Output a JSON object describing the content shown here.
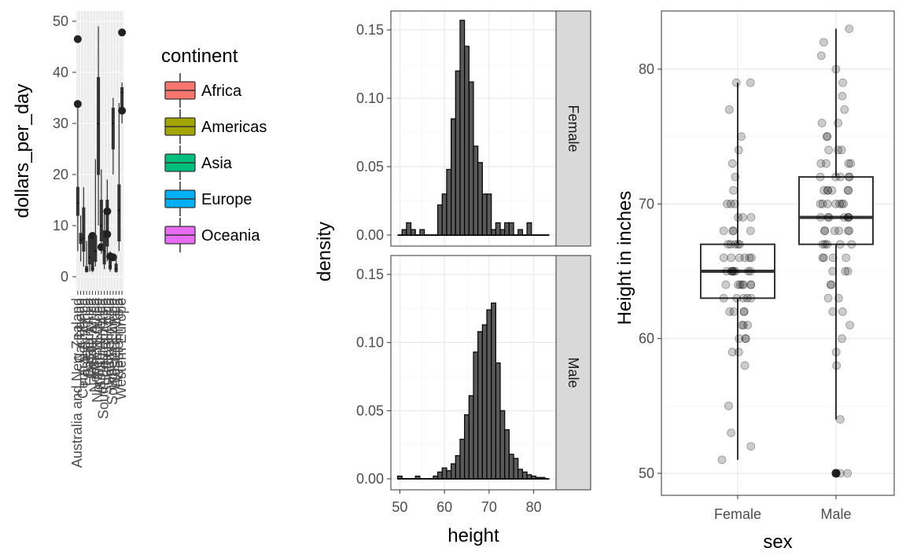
{
  "chart_data": [
    {
      "type": "boxplot",
      "ylabel": "dollars_per_day",
      "ylim": [
        0,
        50
      ],
      "yticks": [
        0,
        10,
        20,
        30,
        40,
        50
      ],
      "grid": true,
      "categories": [
        "Australia and New Zealand",
        "Caribbean",
        "Central America",
        "Eastern Africa",
        "Eastern Asia",
        "Middle Africa",
        "Northern Africa",
        "Northern Europe",
        "South America",
        "South-Eastern Asia",
        "Southern Africa",
        "Southern Asia",
        "Southern Europe",
        "Western Africa",
        "Western Asia",
        "Western Europe"
      ],
      "visible_category_labels": [
        "Australia and New Zealand",
        "Western Europe"
      ],
      "legend": {
        "title": "continent",
        "position": "right",
        "entries": [
          {
            "label": "Africa",
            "color": "#F8766D"
          },
          {
            "label": "Americas",
            "color": "#A3A500"
          },
          {
            "label": "Asia",
            "color": "#00BF7D"
          },
          {
            "label": "Europe",
            "color": "#00B0F6"
          },
          {
            "label": "Oceania",
            "color": "#E76BF3"
          }
        ]
      },
      "boxes": [
        {
          "lower": 5.0,
          "q1": 12.0,
          "median": 14.5,
          "q3": 17.5,
          "upper": 34.0,
          "outliers": [
            46.5,
            33.8
          ]
        },
        {
          "lower": 3.0,
          "q1": 6.5,
          "median": 7.2,
          "q3": 8.5,
          "upper": 12.0,
          "outliers": []
        },
        {
          "lower": 2.0,
          "q1": 5.0,
          "median": 7.5,
          "q3": 13.5,
          "upper": 17.5,
          "outliers": []
        },
        {
          "lower": 0.8,
          "q1": 1.0,
          "median": 1.4,
          "q3": 2.0,
          "upper": 7.0,
          "outliers": []
        },
        {
          "lower": 1.0,
          "q1": 2.5,
          "median": 3.8,
          "q3": 8.0,
          "upper": 8.5,
          "outliers": []
        },
        {
          "lower": 0.9,
          "q1": 1.2,
          "median": 1.6,
          "q3": 8.0,
          "upper": 8.5,
          "outliers": [
            8.0
          ]
        },
        {
          "lower": 2.0,
          "q1": 3.0,
          "median": 5.0,
          "q3": 8.0,
          "upper": 23.0,
          "outliers": []
        },
        {
          "lower": 10.0,
          "q1": 20.0,
          "median": 30.0,
          "q3": 39.0,
          "upper": 49.0,
          "outliers": []
        },
        {
          "lower": 4.5,
          "q1": 7.0,
          "median": 10.0,
          "q3": 15.0,
          "upper": 21.0,
          "outliers": [
            5.8
          ]
        },
        {
          "lower": 1.5,
          "q1": 2.5,
          "median": 5.0,
          "q3": 9.0,
          "upper": 13.0,
          "outliers": []
        },
        {
          "lower": 3.0,
          "q1": 6.0,
          "median": 8.0,
          "q3": 15.0,
          "upper": 19.0,
          "outliers": [
            12.8,
            8.3
          ]
        },
        {
          "lower": 1.0,
          "q1": 1.5,
          "median": 2.0,
          "q3": 3.5,
          "upper": 5.0,
          "outliers": [
            4.0
          ]
        },
        {
          "lower": 20.0,
          "q1": 25.0,
          "median": 30.0,
          "q3": 33.0,
          "upper": 35.0,
          "outliers": [
            3.8
          ]
        },
        {
          "lower": 0.8,
          "q1": 1.0,
          "median": 1.5,
          "q3": 2.5,
          "upper": 4.0,
          "outliers": []
        },
        {
          "lower": 5.0,
          "q1": 7.0,
          "median": 13.0,
          "q3": 18.0,
          "upper": 34.0,
          "outliers": []
        },
        {
          "lower": 30.0,
          "q1": 33.0,
          "median": 36.0,
          "q3": 37.0,
          "upper": 38.0,
          "outliers": [
            47.8,
            32.5
          ]
        }
      ]
    },
    {
      "type": "histogram",
      "xlabel": "height",
      "ylabel": "density",
      "xlim": [
        48,
        85
      ],
      "ylim": [
        -0.005,
        0.162
      ],
      "xticks": [
        50,
        60,
        70,
        80
      ],
      "yticks": [
        0.0,
        0.05,
        0.1,
        0.15
      ],
      "ytick_labels": [
        "0.00",
        "0.05",
        "0.10",
        "0.15"
      ],
      "binwidth": 1,
      "grid": true,
      "facets": [
        {
          "label": "Female",
          "bins": [
            {
              "x": 51,
              "density": 0.004
            },
            {
              "x": 52,
              "density": 0.009
            },
            {
              "x": 53,
              "density": 0.004
            },
            {
              "x": 55,
              "density": 0.004
            },
            {
              "x": 59,
              "density": 0.022
            },
            {
              "x": 60,
              "density": 0.03
            },
            {
              "x": 61,
              "density": 0.048
            },
            {
              "x": 62,
              "density": 0.085
            },
            {
              "x": 63,
              "density": 0.12
            },
            {
              "x": 64,
              "density": 0.157
            },
            {
              "x": 65,
              "density": 0.138
            },
            {
              "x": 66,
              "density": 0.112
            },
            {
              "x": 67,
              "density": 0.065
            },
            {
              "x": 68,
              "density": 0.053
            },
            {
              "x": 69,
              "density": 0.03
            },
            {
              "x": 70,
              "density": 0.03
            },
            {
              "x": 71,
              "density": 0.004
            },
            {
              "x": 72,
              "density": 0.009
            },
            {
              "x": 73,
              "density": 0.004
            },
            {
              "x": 74,
              "density": 0.009
            },
            {
              "x": 75,
              "density": 0.009
            },
            {
              "x": 77,
              "density": 0.004
            },
            {
              "x": 79,
              "density": 0.009
            }
          ]
        },
        {
          "label": "Male",
          "bins": [
            {
              "x": 50,
              "density": 0.002
            },
            {
              "x": 54,
              "density": 0.002
            },
            {
              "x": 58,
              "density": 0.002
            },
            {
              "x": 59,
              "density": 0.005
            },
            {
              "x": 60,
              "density": 0.008
            },
            {
              "x": 61,
              "density": 0.006
            },
            {
              "x": 62,
              "density": 0.011
            },
            {
              "x": 63,
              "density": 0.017
            },
            {
              "x": 64,
              "density": 0.029
            },
            {
              "x": 65,
              "density": 0.047
            },
            {
              "x": 66,
              "density": 0.061
            },
            {
              "x": 67,
              "density": 0.093
            },
            {
              "x": 68,
              "density": 0.108
            },
            {
              "x": 69,
              "density": 0.113
            },
            {
              "x": 70,
              "density": 0.124
            },
            {
              "x": 71,
              "density": 0.129
            },
            {
              "x": 72,
              "density": 0.085
            },
            {
              "x": 73,
              "density": 0.05
            },
            {
              "x": 74,
              "density": 0.036
            },
            {
              "x": 75,
              "density": 0.018
            },
            {
              "x": 76,
              "density": 0.015
            },
            {
              "x": 77,
              "density": 0.007
            },
            {
              "x": 78,
              "density": 0.005
            },
            {
              "x": 79,
              "density": 0.003
            },
            {
              "x": 80,
              "density": 0.002
            },
            {
              "x": 81,
              "density": 0.001
            },
            {
              "x": 82,
              "density": 0.001
            }
          ]
        }
      ]
    },
    {
      "type": "boxplot",
      "xlabel": "sex",
      "ylabel": "Height in inches",
      "ylim": [
        48,
        84
      ],
      "yticks": [
        50,
        60,
        70,
        80
      ],
      "grid": true,
      "point_color": "#000000",
      "point_alpha": 0.2,
      "boxes": [
        {
          "category": "Female",
          "lower": 51,
          "q1": 63,
          "median": 65,
          "q3": 67,
          "upper": 79,
          "points": [
            51,
            52,
            53,
            55,
            58,
            59,
            59,
            60,
            60,
            60,
            61,
            61,
            61,
            62,
            62,
            62,
            62,
            63,
            63,
            63,
            63,
            63,
            64,
            64,
            64,
            64,
            64,
            64,
            64,
            65,
            65,
            65,
            65,
            65,
            65,
            65,
            65,
            66,
            66,
            66,
            66,
            66,
            66,
            67,
            67,
            67,
            67,
            67,
            68,
            68,
            68,
            68,
            69,
            69,
            69,
            70,
            70,
            70,
            71,
            72,
            73,
            74,
            75,
            77,
            79,
            79
          ]
        },
        {
          "category": "Male",
          "lower": 54,
          "q1": 67,
          "median": 69,
          "q3": 72,
          "upper": 83,
          "points": [
            50,
            50,
            54,
            58,
            59,
            60,
            61,
            62,
            62,
            63,
            63,
            64,
            64,
            65,
            65,
            65,
            66,
            66,
            66,
            66,
            67,
            67,
            67,
            67,
            67,
            68,
            68,
            68,
            68,
            68,
            68,
            69,
            69,
            69,
            69,
            69,
            69,
            69,
            70,
            70,
            70,
            70,
            70,
            70,
            70,
            71,
            71,
            71,
            71,
            71,
            71,
            72,
            72,
            72,
            72,
            72,
            73,
            73,
            73,
            73,
            74,
            74,
            74,
            75,
            75,
            76,
            76,
            77,
            78,
            79,
            80,
            81,
            82,
            83
          ],
          "outliers": [
            50
          ]
        }
      ]
    }
  ]
}
